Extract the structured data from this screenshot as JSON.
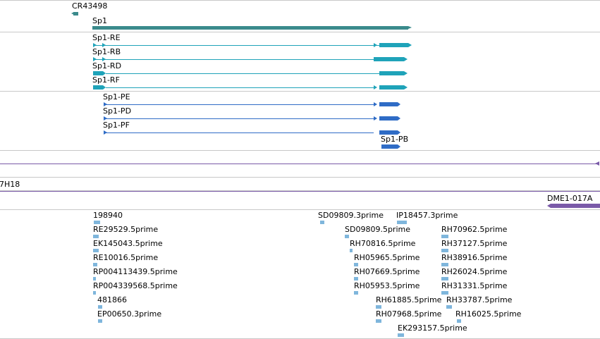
{
  "browser": {
    "colors": {
      "gene": "#3b8b8c",
      "rna": "#1fa3b9",
      "protein": "#2f6cc6",
      "purple": "#7a5aa8",
      "est": "#7fb6dc",
      "separator": "#c8c8c8"
    },
    "features": {
      "cr43498": "CR43498",
      "sp1": "Sp1",
      "sp1_re": "Sp1-RE",
      "sp1_rb": "Sp1-RB",
      "sp1_rd": "Sp1-RD",
      "sp1_rf": "Sp1-RF",
      "sp1_pe": "Sp1-PE",
      "sp1_pd": "Sp1-PD",
      "sp1_pf": "Sp1-PF",
      "sp1_pb": "Sp1-PB",
      "clone_7h18": "7H18",
      "dme1": "DME1-017A"
    },
    "est": {
      "a": "198940",
      "b": "RE29529.5prime",
      "c": "EK145043.5prime",
      "d": "RE10016.5prime",
      "e": "RP004113439.5prime",
      "f": "RP004339568.5prime",
      "g": "481866",
      "h": "EP00650.3prime",
      "i": "SD09809.3prime",
      "j": "IP18457.3prime",
      "k": "SD09809.5prime",
      "l": "RH70962.5prime",
      "m": "RH70816.5prime",
      "n": "RH37127.5prime",
      "o": "RH05965.5prime",
      "p": "RH38916.5prime",
      "q": "RH07669.5prime",
      "r": "RH26024.5prime",
      "s": "RH05953.5prime",
      "t": "RH31331.5prime",
      "u": "RH61885.5prime",
      "v": "RH33787.5prime",
      "w": "RH07968.5prime",
      "x": "RH16025.5prime",
      "y": "EK293157.5prime"
    }
  }
}
